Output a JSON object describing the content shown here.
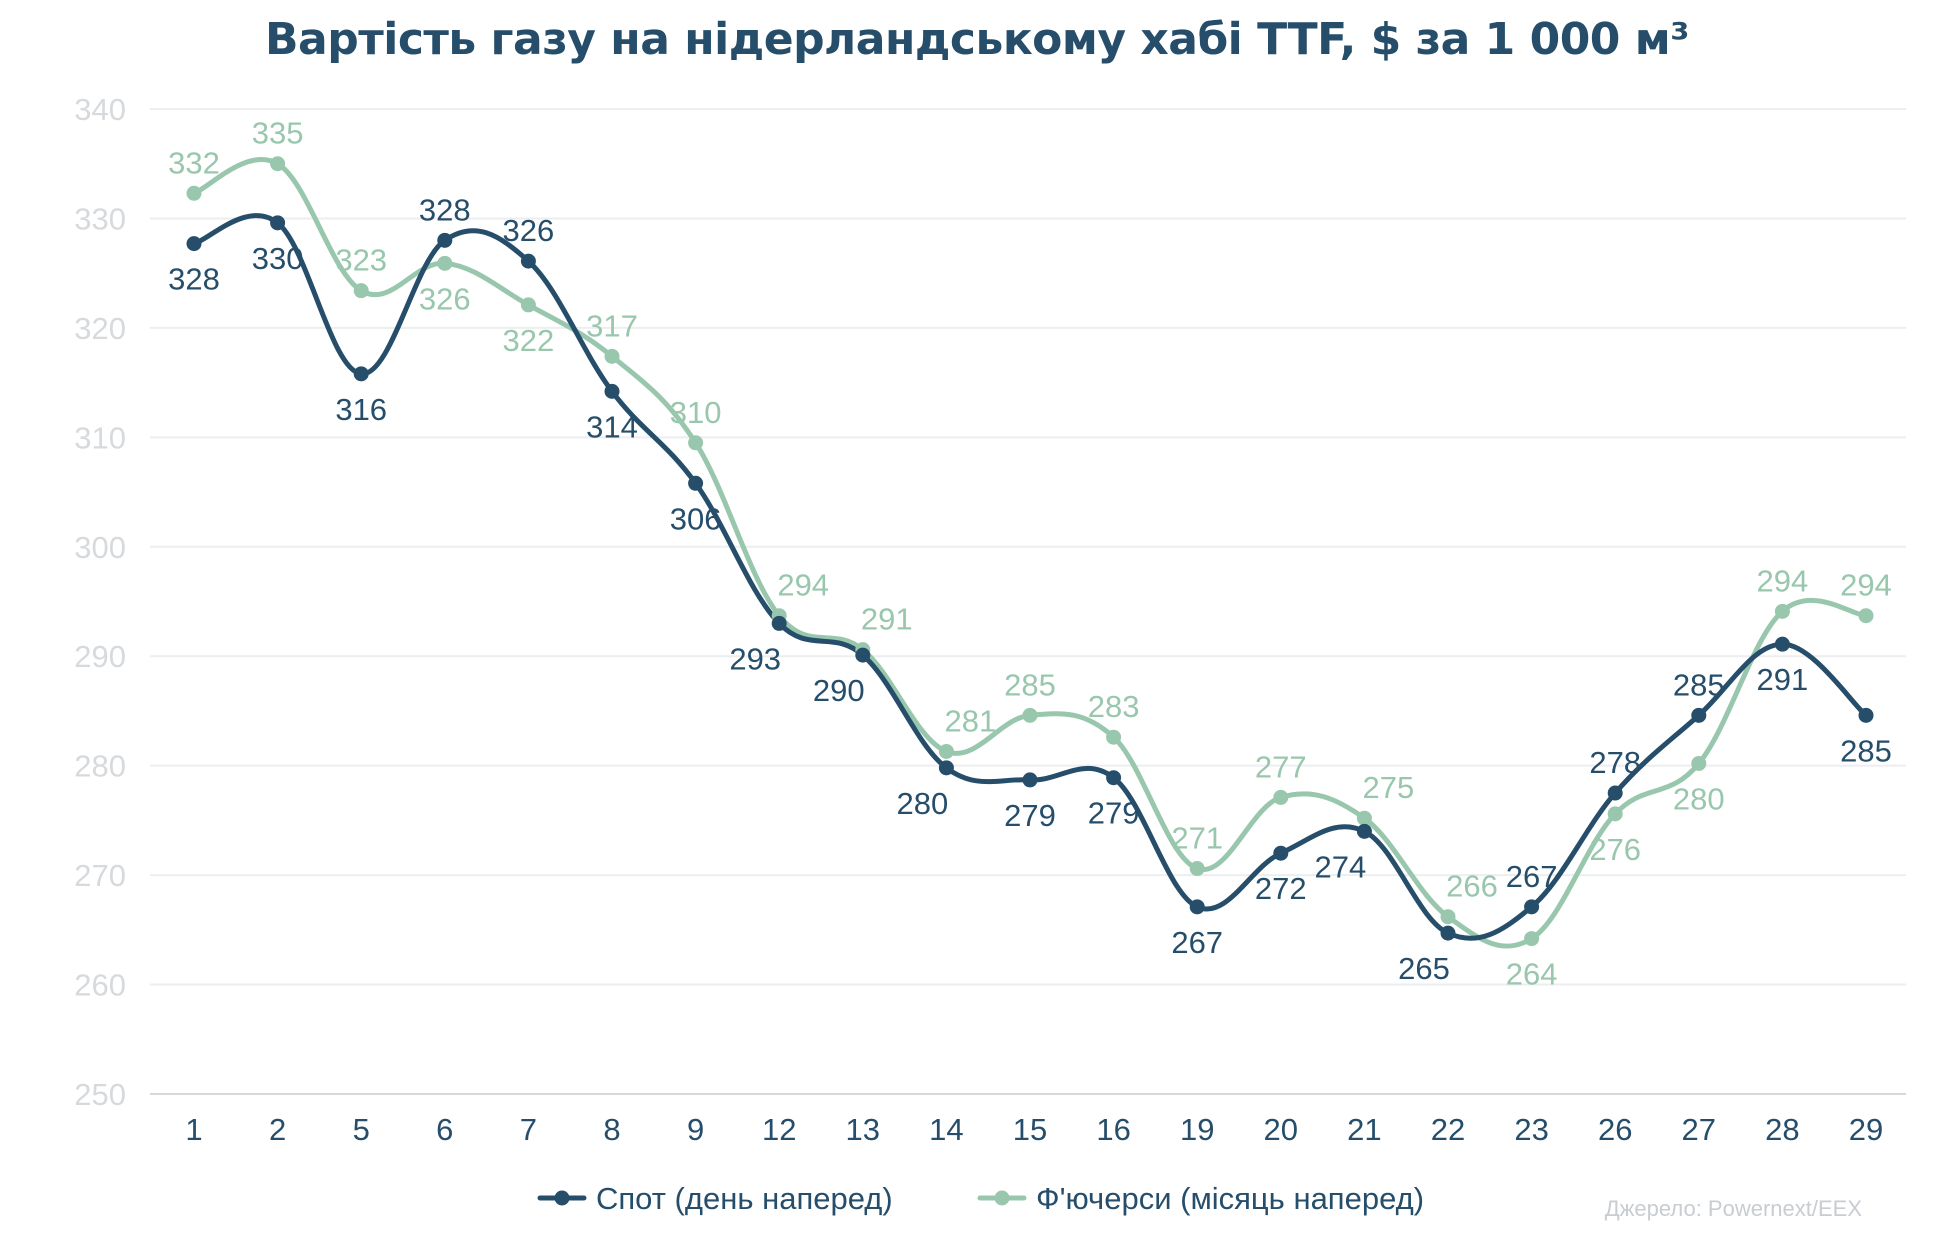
{
  "chart_data": {
    "type": "line",
    "title": "Вартість газу на нідерландському хабі TTF, $ за 1 000 м³",
    "source": "Джерело: Powernext/EEX",
    "categories": [
      "1",
      "2",
      "5",
      "6",
      "7",
      "8",
      "9",
      "12",
      "13",
      "14",
      "15",
      "16",
      "19",
      "20",
      "21",
      "22",
      "23",
      "26",
      "27",
      "28",
      "29"
    ],
    "y_ticks": [
      "250",
      "260",
      "270",
      "280",
      "290",
      "300",
      "310",
      "320",
      "330",
      "340"
    ],
    "ylim": [
      250,
      340
    ],
    "grid": true,
    "legend_position": "bottom",
    "series": [
      {
        "name": "Спот (день наперед)",
        "color": "#264e6b",
        "values": [
          327.7,
          329.6,
          315.8,
          328.0,
          326.1,
          314.2,
          305.8,
          293.0,
          290.1,
          279.8,
          278.7,
          278.9,
          267.1,
          272.0,
          274.0,
          264.7,
          267.1,
          277.5,
          284.6,
          291.1,
          284.6
        ],
        "labels": [
          "328",
          "330",
          "316",
          "328",
          "326",
          "314",
          "306",
          "293",
          "290",
          "280",
          "279",
          "279",
          "267",
          "272",
          "274",
          "265",
          "267",
          "278",
          "285",
          "291",
          "285"
        ]
      },
      {
        "name": "Ф'ючерси (місяць наперед)",
        "color": "#99c7ad",
        "values": [
          332.3,
          335.0,
          323.4,
          325.9,
          322.1,
          317.4,
          309.5,
          293.7,
          290.6,
          281.3,
          284.6,
          282.6,
          270.6,
          277.1,
          275.2,
          266.2,
          264.2,
          275.6,
          280.2,
          294.1,
          293.7
        ],
        "labels": [
          "332",
          "335",
          "323",
          "326",
          "322",
          "317",
          "310",
          "294",
          "291",
          "281",
          "285",
          "283",
          "271",
          "277",
          "275",
          "266",
          "264",
          "276",
          "280",
          "294",
          "294"
        ]
      }
    ]
  }
}
